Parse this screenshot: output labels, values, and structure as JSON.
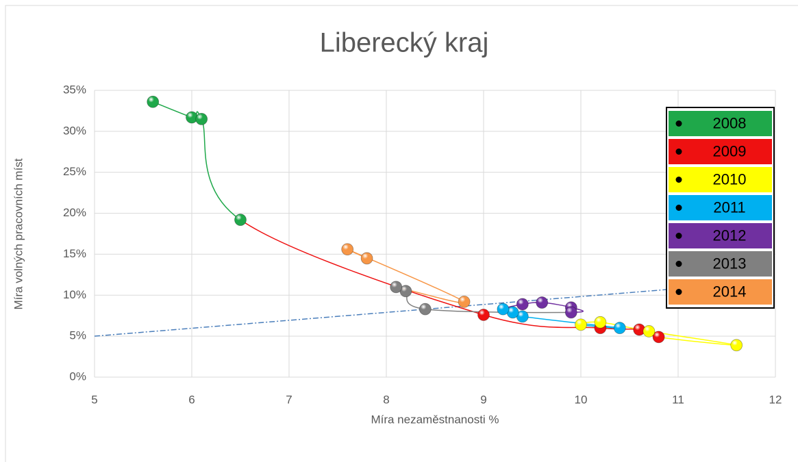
{
  "chart_data": {
    "type": "scatter",
    "title": "Liberecký kraj",
    "x_label": "Míra nezaměstnanosti %",
    "y_label": "Míra volných pracovních míst",
    "xlim": [
      5,
      12
    ],
    "xticks": [
      5,
      6,
      7,
      8,
      9,
      10,
      11,
      12
    ],
    "ylim": [
      0,
      35
    ],
    "yticks": [
      {
        "value": 0,
        "label": "0%"
      },
      {
        "value": 5,
        "label": "5%"
      },
      {
        "value": 10,
        "label": "10%"
      },
      {
        "value": 15,
        "label": "15%"
      },
      {
        "value": 20,
        "label": "20%"
      },
      {
        "value": 25,
        "label": "25%"
      },
      {
        "value": 30,
        "label": "30%"
      },
      {
        "value": 35,
        "label": "35%"
      }
    ],
    "grid": true,
    "legend": "right",
    "series": [
      {
        "name": "2008",
        "color": "#1fa84a",
        "x": [
          5.6,
          6.0,
          6.1,
          6.5
        ],
        "values": [
          33.6,
          31.7,
          31.5,
          19.2
        ]
      },
      {
        "name": "2009",
        "color": "#ee1111",
        "x": [
          9.0,
          10.2,
          10.6,
          10.8
        ],
        "values": [
          7.6,
          6.0,
          5.8,
          4.9
        ]
      },
      {
        "name": "2010",
        "color": "#ffff00",
        "x": [
          11.6,
          10.7,
          10.2,
          10.0
        ],
        "values": [
          3.9,
          5.6,
          6.7,
          6.4
        ]
      },
      {
        "name": "2011",
        "color": "#00b0f0",
        "x": [
          10.4,
          9.4,
          9.3,
          9.2
        ],
        "values": [
          6.0,
          7.4,
          7.9,
          8.3
        ]
      },
      {
        "name": "2012",
        "color": "#7030a0",
        "x": [
          9.4,
          9.6,
          9.9,
          9.9
        ],
        "values": [
          8.9,
          9.1,
          8.5,
          7.9
        ]
      },
      {
        "name": "2013",
        "color": "#808080",
        "x": [
          8.4,
          8.2,
          8.1
        ],
        "values": [
          8.3,
          10.5,
          11.0
        ]
      },
      {
        "name": "2014",
        "color": "#f79646",
        "x": [
          8.8,
          7.6,
          7.8
        ],
        "values": [
          9.2,
          15.6,
          14.5
        ]
      }
    ],
    "trendline": {
      "color": "#4a7ebb",
      "x": [
        5,
        11
      ],
      "values": [
        5,
        10.8
      ]
    }
  }
}
